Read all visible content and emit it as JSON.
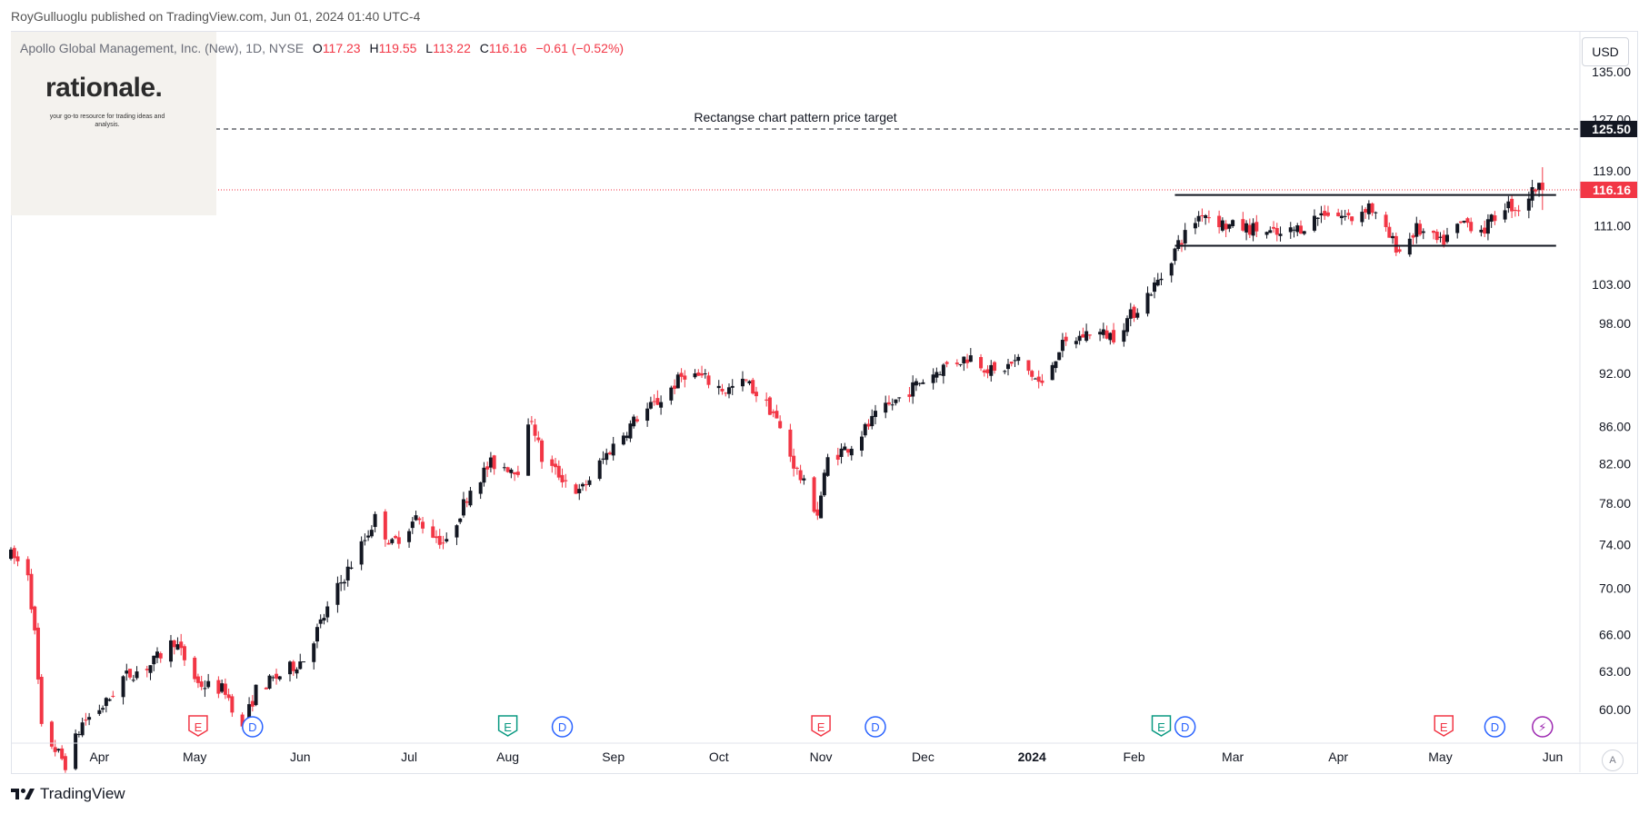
{
  "publisher_line": "RoyGulluoglu published on TradingView.com, Jun 01, 2024 01:40 UTC-4",
  "legend": {
    "symbol": "Apollo Global Management, Inc. (New), 1D, NYSE",
    "open_label": "O",
    "open": "117.23",
    "high_label": "H",
    "high": "119.55",
    "low_label": "L",
    "low": "113.22",
    "close_label": "C",
    "close": "116.16",
    "change": "−0.61 (−0.52%)"
  },
  "logo": {
    "word": "rationale.",
    "tagline": "your go-to resource for trading ideas and analysis."
  },
  "currency_button": "USD",
  "auto_button": "A",
  "brand_label": "TradingView",
  "colors": {
    "up": "#131722",
    "down": "#f23645",
    "grid": "#eef0f4",
    "last_price": "#f23645",
    "target": "#131722"
  },
  "chart_data": {
    "type": "candlestick",
    "symbol": "APO",
    "timeframe": "1D",
    "y_axis": {
      "scale": "log",
      "ticks": [
        "135.00",
        "127.00",
        "119.00",
        "111.00",
        "103.00",
        "98.00",
        "92.00",
        "86.00",
        "82.00",
        "78.00",
        "74.00",
        "70.00",
        "66.00",
        "63.00",
        "60.00"
      ],
      "range": [
        57.5,
        142
      ]
    },
    "x_axis": {
      "labels": [
        {
          "text": "Apr",
          "date": "2023-04-03"
        },
        {
          "text": "May",
          "date": "2023-05-01"
        },
        {
          "text": "Jun",
          "date": "2023-06-01"
        },
        {
          "text": "Jul",
          "date": "2023-07-03"
        },
        {
          "text": "Aug",
          "date": "2023-08-01"
        },
        {
          "text": "Sep",
          "date": "2023-09-01"
        },
        {
          "text": "Oct",
          "date": "2023-10-02"
        },
        {
          "text": "Nov",
          "date": "2023-11-01"
        },
        {
          "text": "Dec",
          "date": "2023-12-01"
        },
        {
          "text": "2024",
          "date": "2024-01-02",
          "bold": true
        },
        {
          "text": "Feb",
          "date": "2024-02-01"
        },
        {
          "text": "Mar",
          "date": "2024-03-01"
        },
        {
          "text": "Apr",
          "date": "2024-04-01"
        },
        {
          "text": "May",
          "date": "2024-05-01"
        },
        {
          "text": "Jun",
          "date": "2024-06-03"
        }
      ],
      "start_date": "2023-03-08",
      "end_date": "2024-06-11"
    },
    "price_path": [
      {
        "date": "2023-03-08",
        "price": 73.0
      },
      {
        "date": "2023-03-13",
        "price": 71.5
      },
      {
        "date": "2023-03-15",
        "price": 66.0
      },
      {
        "date": "2023-03-17",
        "price": 58.5
      },
      {
        "date": "2023-03-24",
        "price": 56.0
      },
      {
        "date": "2023-03-29",
        "price": 59.0
      },
      {
        "date": "2023-04-05",
        "price": 60.5
      },
      {
        "date": "2023-04-10",
        "price": 62.5
      },
      {
        "date": "2023-04-18",
        "price": 63.5
      },
      {
        "date": "2023-04-25",
        "price": 65.5
      },
      {
        "date": "2023-05-02",
        "price": 62.0
      },
      {
        "date": "2023-05-10",
        "price": 61.5
      },
      {
        "date": "2023-05-15",
        "price": 58.5
      },
      {
        "date": "2023-05-19",
        "price": 61.5
      },
      {
        "date": "2023-05-25",
        "price": 62.5
      },
      {
        "date": "2023-06-02",
        "price": 64.0
      },
      {
        "date": "2023-06-12",
        "price": 70.0
      },
      {
        "date": "2023-06-20",
        "price": 74.5
      },
      {
        "date": "2023-06-23",
        "price": 76.5
      },
      {
        "date": "2023-06-28",
        "price": 74.0
      },
      {
        "date": "2023-07-05",
        "price": 76.5
      },
      {
        "date": "2023-07-10",
        "price": 75.0
      },
      {
        "date": "2023-07-14",
        "price": 74.0
      },
      {
        "date": "2023-07-21",
        "price": 79.5
      },
      {
        "date": "2023-07-27",
        "price": 82.0
      },
      {
        "date": "2023-08-04",
        "price": 81.5
      },
      {
        "date": "2023-08-08",
        "price": 87.0
      },
      {
        "date": "2023-08-11",
        "price": 82.5
      },
      {
        "date": "2023-08-22",
        "price": 79.0
      },
      {
        "date": "2023-08-31",
        "price": 83.5
      },
      {
        "date": "2023-09-08",
        "price": 87.0
      },
      {
        "date": "2023-09-15",
        "price": 89.0
      },
      {
        "date": "2023-09-22",
        "price": 92.0
      },
      {
        "date": "2023-09-27",
        "price": 91.5
      },
      {
        "date": "2023-10-04",
        "price": 90.0
      },
      {
        "date": "2023-10-10",
        "price": 91.0
      },
      {
        "date": "2023-10-18",
        "price": 87.5
      },
      {
        "date": "2023-10-24",
        "price": 82.0
      },
      {
        "date": "2023-10-31",
        "price": 77.0
      },
      {
        "date": "2023-11-03",
        "price": 82.5
      },
      {
        "date": "2023-11-10",
        "price": 84.0
      },
      {
        "date": "2023-11-17",
        "price": 87.0
      },
      {
        "date": "2023-11-30",
        "price": 91.0
      },
      {
        "date": "2023-12-08",
        "price": 93.0
      },
      {
        "date": "2023-12-15",
        "price": 94.0
      },
      {
        "date": "2023-12-22",
        "price": 92.0
      },
      {
        "date": "2023-12-29",
        "price": 93.5
      },
      {
        "date": "2024-01-05",
        "price": 90.5
      },
      {
        "date": "2024-01-10",
        "price": 95.0
      },
      {
        "date": "2024-01-19",
        "price": 97.0
      },
      {
        "date": "2024-01-26",
        "price": 96.5
      },
      {
        "date": "2024-02-02",
        "price": 100.0
      },
      {
        "date": "2024-02-09",
        "price": 104.0
      },
      {
        "date": "2024-02-14",
        "price": 108.5
      },
      {
        "date": "2024-02-21",
        "price": 113.0
      },
      {
        "date": "2024-02-28",
        "price": 111.0
      },
      {
        "date": "2024-03-08",
        "price": 110.5
      },
      {
        "date": "2024-03-15",
        "price": 109.5
      },
      {
        "date": "2024-03-22",
        "price": 111.0
      },
      {
        "date": "2024-03-28",
        "price": 113.0
      },
      {
        "date": "2024-04-05",
        "price": 112.0
      },
      {
        "date": "2024-04-10",
        "price": 114.0
      },
      {
        "date": "2024-04-15",
        "price": 110.0
      },
      {
        "date": "2024-04-19",
        "price": 107.5
      },
      {
        "date": "2024-04-24",
        "price": 110.5
      },
      {
        "date": "2024-05-01",
        "price": 108.5
      },
      {
        "date": "2024-05-08",
        "price": 111.5
      },
      {
        "date": "2024-05-14",
        "price": 110.5
      },
      {
        "date": "2024-05-20",
        "price": 114.0
      },
      {
        "date": "2024-05-24",
        "price": 113.5
      },
      {
        "date": "2024-05-29",
        "price": 116.5
      },
      {
        "date": "2024-05-31",
        "price": 116.16
      }
    ],
    "last_candle": {
      "date": "2024-05-31",
      "open": 117.23,
      "high": 119.55,
      "low": 113.22,
      "close": 116.16
    },
    "last_price_label": "116.16",
    "target_line": {
      "price": 125.5,
      "label": "125.50",
      "annotation": "Rectangse chart pattern price target"
    },
    "rectangle": {
      "start_date": "2024-02-13",
      "end_date": "2024-06-04",
      "top": 115.4,
      "bottom": 108.2
    },
    "events": [
      {
        "date": "2023-05-02",
        "type": "E",
        "color": "#f23645"
      },
      {
        "date": "2023-05-18",
        "type": "D",
        "color": "#2962ff"
      },
      {
        "date": "2023-08-01",
        "type": "E",
        "color": "#089981"
      },
      {
        "date": "2023-08-17",
        "type": "D",
        "color": "#2962ff"
      },
      {
        "date": "2023-11-01",
        "type": "E",
        "color": "#f23645"
      },
      {
        "date": "2023-11-17",
        "type": "D",
        "color": "#2962ff"
      },
      {
        "date": "2024-02-09",
        "type": "E",
        "color": "#089981"
      },
      {
        "date": "2024-02-16",
        "type": "D",
        "color": "#2962ff"
      },
      {
        "date": "2024-05-02",
        "type": "E",
        "color": "#f23645"
      },
      {
        "date": "2024-05-17",
        "type": "D",
        "color": "#2962ff"
      },
      {
        "date": "2024-05-31",
        "type": "⚡",
        "color": "#9c27b0"
      }
    ],
    "grid": false,
    "legend_position": "top-left"
  }
}
